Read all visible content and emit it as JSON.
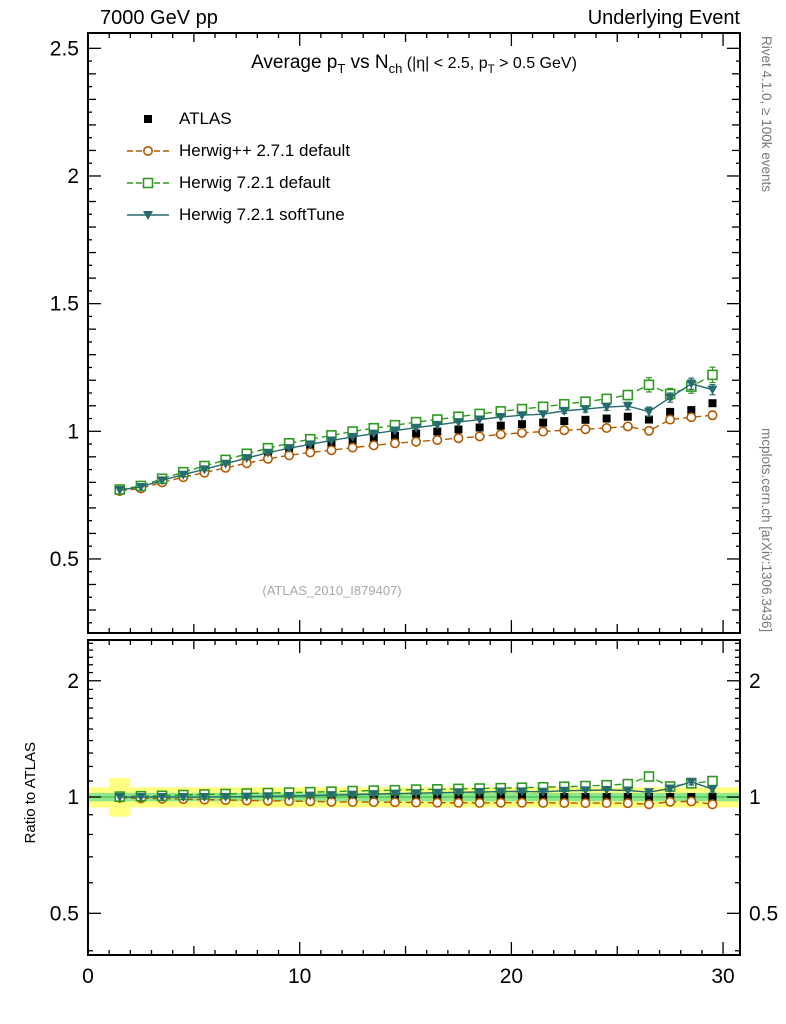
{
  "header": {
    "left": "7000 GeV pp",
    "right": "Underlying Event"
  },
  "side_texts": {
    "top_right": "Rivet 4.1.0, ≥ 100k events",
    "bottom_right": "mcplots.cern.ch [arXiv:1306.3436]"
  },
  "watermark": "(ATLAS_2010_I879407)",
  "ratio_label": "Ratio to ATLAS",
  "title_parts": [
    {
      "text": "Average p"
    },
    {
      "text": "T",
      "sub": true
    },
    {
      "text": " vs N"
    },
    {
      "text": "ch",
      "sub": true
    },
    {
      "text": " (|η| < 2.5, p",
      "small": true
    },
    {
      "text": "T",
      "sub": true,
      "small": true
    },
    {
      "text": " > 0.5 GeV)",
      "small": true
    }
  ],
  "chart_data": {
    "type": "line",
    "title": "Average pT vs Nch (|η| < 2.5, pT > 0.5 GeV)",
    "xlabel": "",
    "ylabel": "",
    "legend_position": "top-left-inside",
    "grid": false,
    "xlim": [
      0,
      30.8
    ],
    "xticks": [
      0,
      10,
      20,
      30
    ],
    "main_ylim": [
      0.21,
      2.56
    ],
    "main_yticks": [
      0.5,
      1,
      1.5,
      2,
      2.5
    ],
    "ratio_ylim": [
      0.39,
      2.55
    ],
    "ratio_yscale": "log",
    "ratio_yticks": [
      0.5,
      1,
      2
    ],
    "x": [
      1.5,
      2.5,
      3.5,
      4.5,
      5.5,
      6.5,
      7.5,
      8.5,
      9.5,
      10.5,
      11.5,
      12.5,
      13.5,
      14.5,
      15.5,
      16.5,
      17.5,
      18.5,
      19.5,
      20.5,
      21.5,
      22.5,
      23.5,
      24.5,
      25.5,
      26.5,
      27.5,
      28.5,
      29.5
    ],
    "series": [
      {
        "name": "ATLAS",
        "color": "#000000",
        "marker": "square-filled",
        "line": "none",
        "values": [
          0.77,
          0.782,
          0.808,
          0.83,
          0.851,
          0.872,
          0.893,
          0.912,
          0.928,
          0.941,
          0.953,
          0.964,
          0.974,
          0.983,
          0.991,
          0.999,
          1.007,
          1.015,
          1.022,
          1.028,
          1.034,
          1.04,
          1.045,
          1.05,
          1.057,
          1.046,
          1.076,
          1.083,
          1.11
        ],
        "err": [
          0.004,
          0.004,
          0.004,
          0.004,
          0.004,
          0.004,
          0.004,
          0.004,
          0.004,
          0.004,
          0.004,
          0.004,
          0.004,
          0.004,
          0.004,
          0.004,
          0.004,
          0.004,
          0.004,
          0.004,
          0.004,
          0.004,
          0.004,
          0.004,
          0.004,
          0.006,
          0.008,
          0.008,
          0.01
        ]
      },
      {
        "name": "Herwig++ 2.7.1 default",
        "color": "#b35a00",
        "marker": "circle-open",
        "line": "dashed",
        "values": [
          0.766,
          0.776,
          0.8,
          0.82,
          0.838,
          0.857,
          0.875,
          0.892,
          0.906,
          0.917,
          0.926,
          0.936,
          0.945,
          0.953,
          0.959,
          0.966,
          0.973,
          0.98,
          0.988,
          0.994,
          0.999,
          1.004,
          1.008,
          1.013,
          1.019,
          1.002,
          1.046,
          1.055,
          1.063
        ],
        "err": [
          0.003,
          0.003,
          0.003,
          0.003,
          0.003,
          0.003,
          0.003,
          0.003,
          0.003,
          0.003,
          0.003,
          0.003,
          0.003,
          0.003,
          0.003,
          0.003,
          0.003,
          0.003,
          0.003,
          0.003,
          0.006,
          0.007,
          0.008,
          0.009,
          0.01,
          0.012,
          0.013,
          0.014,
          0.016
        ]
      },
      {
        "name": "Herwig 7.2.1 default",
        "color": "#2e9a20",
        "marker": "square-open",
        "line": "dashed",
        "values": [
          0.772,
          0.786,
          0.814,
          0.84,
          0.864,
          0.888,
          0.912,
          0.934,
          0.953,
          0.969,
          0.984,
          0.999,
          1.012,
          1.024,
          1.036,
          1.046,
          1.057,
          1.068,
          1.078,
          1.087,
          1.096,
          1.106,
          1.116,
          1.127,
          1.142,
          1.182,
          1.146,
          1.175,
          1.221
        ],
        "err": [
          0.004,
          0.004,
          0.004,
          0.004,
          0.004,
          0.004,
          0.004,
          0.004,
          0.004,
          0.004,
          0.004,
          0.004,
          0.004,
          0.004,
          0.004,
          0.004,
          0.004,
          0.004,
          0.008,
          0.009,
          0.01,
          0.012,
          0.014,
          0.016,
          0.018,
          0.028,
          0.022,
          0.026,
          0.03
        ]
      },
      {
        "name": "Herwig 7.2.1 softTune",
        "color": "#266b70",
        "marker": "triangle-down-filled",
        "line": "solid",
        "values": [
          0.77,
          0.782,
          0.808,
          0.83,
          0.851,
          0.873,
          0.895,
          0.916,
          0.934,
          0.949,
          0.964,
          0.978,
          0.991,
          1.003,
          1.014,
          1.025,
          1.036,
          1.046,
          1.056,
          1.063,
          1.067,
          1.08,
          1.087,
          1.095,
          1.099,
          1.077,
          1.132,
          1.186,
          1.163
        ],
        "err": [
          0.003,
          0.003,
          0.003,
          0.003,
          0.003,
          0.003,
          0.003,
          0.003,
          0.003,
          0.003,
          0.003,
          0.003,
          0.003,
          0.003,
          0.003,
          0.003,
          0.003,
          0.003,
          0.007,
          0.008,
          0.009,
          0.01,
          0.012,
          0.013,
          0.015,
          0.018,
          0.018,
          0.022,
          0.02
        ]
      }
    ],
    "ratio_band": {
      "outer_color": "#ffff80",
      "inner_color": "#8de88d",
      "outer": [
        0.94,
        1.06
      ],
      "inner": [
        0.975,
        1.025
      ],
      "first_bin": [
        0.89,
        1.12
      ]
    }
  }
}
